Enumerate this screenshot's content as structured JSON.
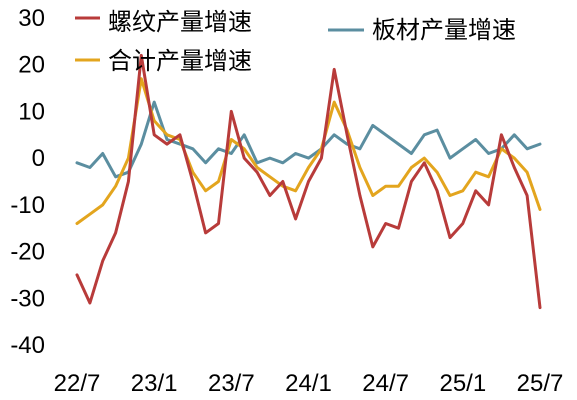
{
  "chart_data": {
    "type": "line",
    "x_ticks": [
      "22/7",
      "23/1",
      "23/7",
      "24/1",
      "24/7",
      "25/1",
      "25/7"
    ],
    "y_ticks": [
      30,
      20,
      10,
      0,
      -10,
      -20,
      -30,
      -40
    ],
    "ylim": [
      -40,
      30
    ],
    "legend_position": "top",
    "series": [
      {
        "name": "螺纹产量增速",
        "color": "#B83B3A",
        "x": [
          0,
          1,
          2,
          3,
          4,
          5,
          6,
          7,
          8,
          9,
          10,
          11,
          12,
          13,
          14,
          15,
          16,
          17,
          18,
          19,
          20,
          21,
          22,
          23,
          24,
          25,
          26,
          27,
          28,
          29,
          30,
          31,
          32,
          33,
          34,
          35,
          36
        ],
        "values": [
          -25,
          -31,
          -22,
          -16,
          -5,
          22,
          5,
          3,
          5,
          -5,
          -16,
          -14,
          10,
          0,
          -3,
          -8,
          -5,
          -13,
          -5,
          0,
          19,
          5,
          -8,
          -19,
          -14,
          -15,
          -5,
          -1,
          -7,
          -17,
          -14,
          -7,
          -10,
          5,
          -2,
          -8,
          -32
        ]
      },
      {
        "name": "板材产量增速",
        "color": "#5B8EA0",
        "x": [
          0,
          1,
          2,
          3,
          4,
          5,
          6,
          7,
          8,
          9,
          10,
          11,
          12,
          13,
          14,
          15,
          16,
          17,
          18,
          19,
          20,
          21,
          22,
          23,
          24,
          25,
          26,
          27,
          28,
          29,
          30,
          31,
          32,
          33,
          34,
          35,
          36
        ],
        "values": [
          -1,
          -2,
          1,
          -4,
          -3,
          3,
          12,
          4,
          3,
          2,
          -1,
          2,
          1,
          5,
          -1,
          0,
          -1,
          1,
          0,
          2,
          5,
          3,
          2,
          7,
          5,
          3,
          1,
          5,
          6,
          0,
          2,
          4,
          1,
          2,
          5,
          2,
          3
        ]
      },
      {
        "name": "合计产量增速",
        "color": "#E3A51E",
        "x": [
          0,
          1,
          2,
          3,
          4,
          5,
          6,
          7,
          8,
          9,
          10,
          11,
          12,
          13,
          14,
          15,
          16,
          17,
          18,
          19,
          20,
          21,
          22,
          23,
          24,
          25,
          26,
          27,
          28,
          29,
          30,
          31,
          32,
          33,
          34,
          35,
          36
        ],
        "values": [
          -14,
          -12,
          -10,
          -6,
          0,
          17,
          8,
          5,
          4,
          -3,
          -7,
          -5,
          4,
          2,
          -2,
          -4,
          -6,
          -7,
          -2,
          2,
          12,
          6,
          -2,
          -8,
          -6,
          -6,
          -2,
          0,
          -3,
          -8,
          -7,
          -3,
          -4,
          2,
          0,
          -3,
          -11
        ]
      }
    ]
  }
}
